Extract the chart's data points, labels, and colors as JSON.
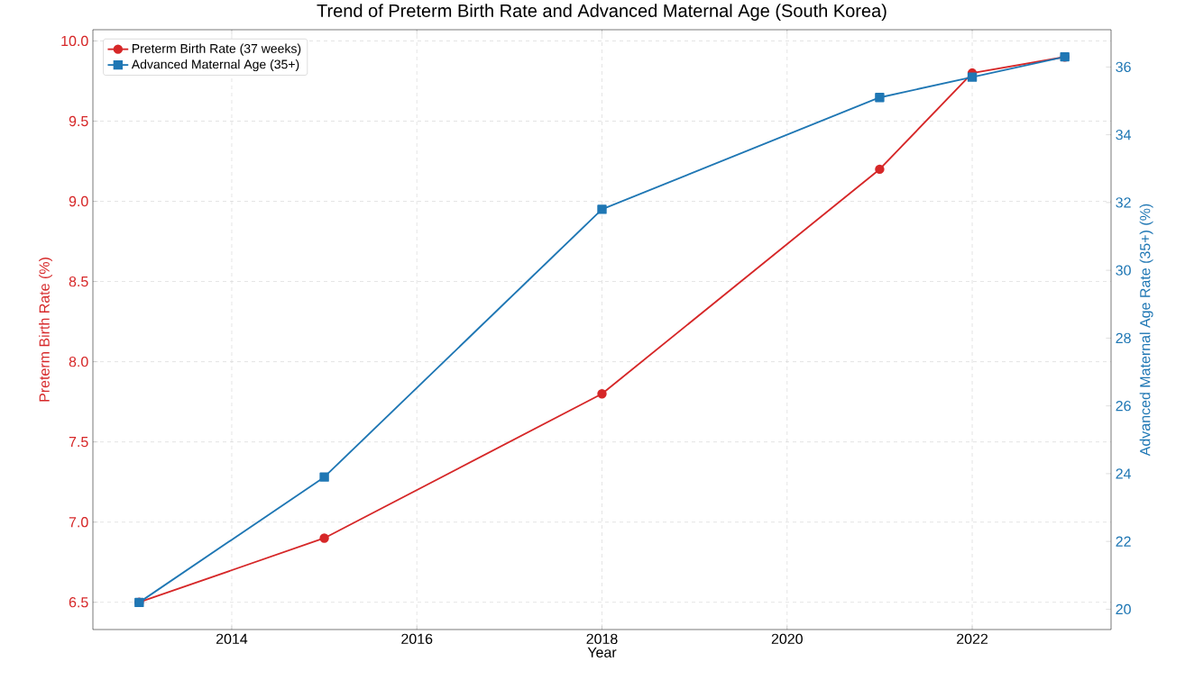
{
  "chart_data": {
    "type": "line",
    "title": "Trend of Preterm Birth Rate and Advanced Maternal Age (South Korea)",
    "xlabel": "Year",
    "ylabel": "Preterm Birth Rate (%)",
    "y2label": "Advanced Maternal Age Rate (35+) (%)",
    "x": [
      2013,
      2015,
      2018,
      2021,
      2022,
      2023
    ],
    "series": [
      {
        "name": "Preterm Birth Rate (37 weeks)",
        "color": "#d62728",
        "marker": "circle",
        "values": [
          6.5,
          6.9,
          7.8,
          9.2,
          9.8,
          9.9
        ]
      },
      {
        "name": "Advanced Maternal Age (35+)",
        "color": "#1f77b4",
        "marker": "square",
        "axis": "y2",
        "values": [
          20.2,
          23.9,
          31.8,
          35.1,
          35.7,
          36.3
        ]
      }
    ],
    "xlim": [
      2012.5,
      2023.5
    ],
    "xticks": [
      2014,
      2016,
      2018,
      2020,
      2022
    ],
    "ylim": [
      6.33,
      10.07
    ],
    "yticks": [
      {
        "value": 6.5,
        "label": "6.5"
      },
      {
        "value": 7.0,
        "label": "7.0"
      },
      {
        "value": 7.5,
        "label": "7.5"
      },
      {
        "value": 8.0,
        "label": "8.0"
      },
      {
        "value": 8.5,
        "label": "8.5"
      },
      {
        "value": 9.0,
        "label": "9.0"
      },
      {
        "value": 9.5,
        "label": "9.5"
      },
      {
        "value": 10.0,
        "label": "10.0"
      }
    ],
    "y2lim": [
      19.4,
      37.1
    ],
    "y2ticks": [
      20,
      22,
      24,
      26,
      28,
      30,
      32,
      34,
      36
    ],
    "grid": true,
    "legend": "top left",
    "line_style": "solid"
  }
}
